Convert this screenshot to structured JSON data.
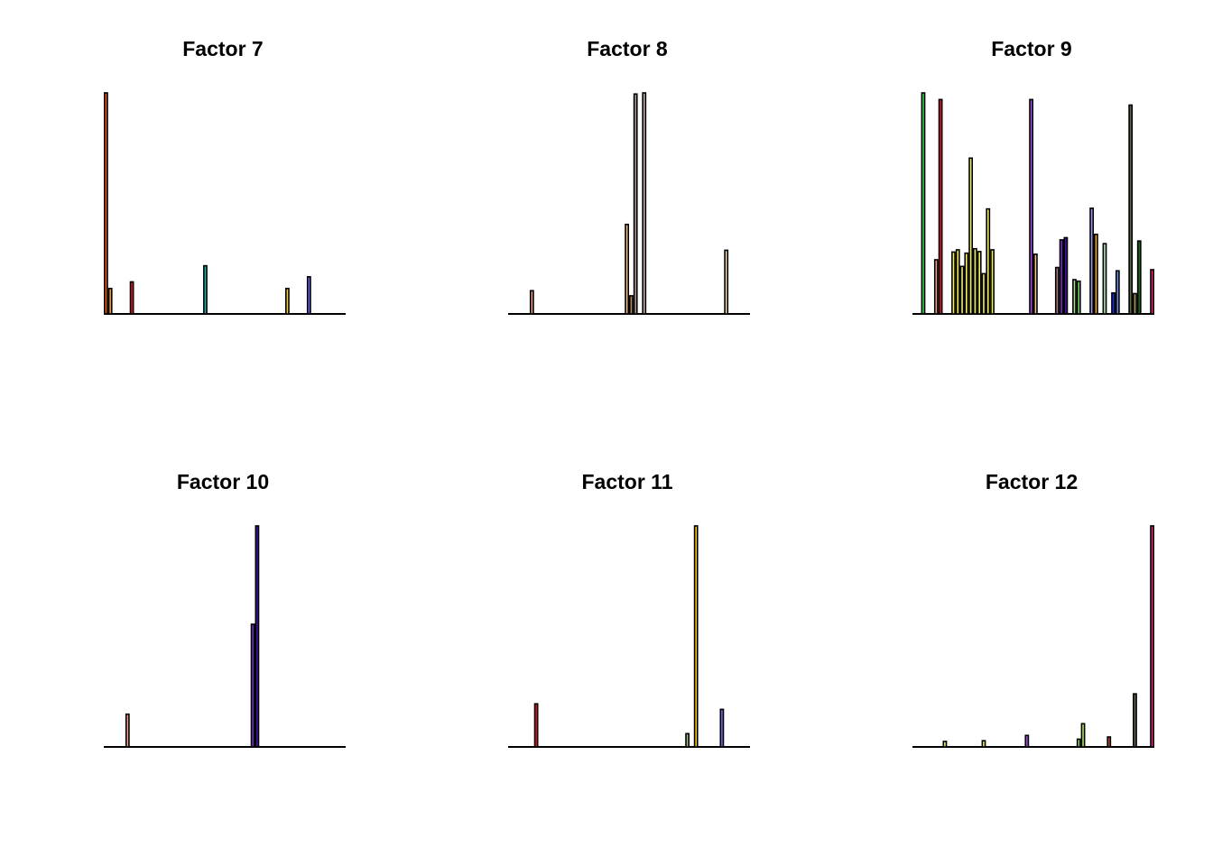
{
  "chart_data": [
    {
      "type": "bar",
      "title": "Factor 7",
      "xlabel": "",
      "ylabel": "",
      "ylim": [
        0,
        1
      ],
      "axes_shown": false,
      "grid": false,
      "bars": [
        {
          "value": 1.0,
          "color": "#f25c1b"
        },
        {
          "value": 0.115,
          "color": "#f7a21c"
        },
        {
          "value": 0.145,
          "color": "#e8101f"
        },
        {
          "value": 0.218,
          "color": "#18b5b5"
        },
        {
          "value": 0.115,
          "color": "#f2d21a"
        },
        {
          "value": 0.168,
          "color": "#6a6aef"
        }
      ]
    },
    {
      "type": "bar",
      "title": "Factor 8",
      "xlabel": "",
      "ylabel": "",
      "ylim": [
        0,
        1
      ],
      "axes_shown": false,
      "grid": false,
      "bars": [
        {
          "value": 0.105,
          "color": "#f29a8e"
        },
        {
          "value": 0.405,
          "color": "#f5bf86"
        },
        {
          "value": 0.082,
          "color": "#b68a56"
        },
        {
          "value": 0.995,
          "color": "#a8968a"
        },
        {
          "value": 1.0,
          "color": "#c7b2a6"
        },
        {
          "value": 0.288,
          "color": "#f7dca8"
        }
      ]
    },
    {
      "type": "bar",
      "title": "Factor 9",
      "xlabel": "",
      "ylabel": "",
      "ylim": [
        0,
        1
      ],
      "axes_shown": false,
      "grid": false,
      "bars": [
        {
          "value": 1.0,
          "color": "#33d94a"
        },
        {
          "value": 0.245,
          "color": "#f0a088"
        },
        {
          "value": 0.97,
          "color": "#e8101f"
        },
        {
          "value": 0.28,
          "color": "#f7f25a"
        },
        {
          "value": 0.29,
          "color": "#f7f25a"
        },
        {
          "value": 0.215,
          "color": "#f7f25a"
        },
        {
          "value": 0.275,
          "color": "#f7f25a"
        },
        {
          "value": 0.705,
          "color": "#f7f25a"
        },
        {
          "value": 0.295,
          "color": "#f7f25a"
        },
        {
          "value": 0.282,
          "color": "#f7f25a"
        },
        {
          "value": 0.182,
          "color": "#f7f25a"
        },
        {
          "value": 0.475,
          "color": "#f7f25a"
        },
        {
          "value": 0.29,
          "color": "#f7f25a"
        },
        {
          "value": 0.97,
          "color": "#a84be8"
        },
        {
          "value": 0.27,
          "color": "#f5c08a"
        },
        {
          "value": 0.21,
          "color": "#a8807a"
        },
        {
          "value": 0.335,
          "color": "#7a28d8"
        },
        {
          "value": 0.345,
          "color": "#4a0fa8"
        },
        {
          "value": 0.155,
          "color": "#a8d88a"
        },
        {
          "value": 0.148,
          "color": "#7adb6a"
        },
        {
          "value": 0.478,
          "color": "#9a9af2"
        },
        {
          "value": 0.36,
          "color": "#f7a821"
        },
        {
          "value": 0.318,
          "color": "#a8f2b0"
        },
        {
          "value": 0.095,
          "color": "#1a2ee8"
        },
        {
          "value": 0.195,
          "color": "#6a8ae8"
        },
        {
          "value": 0.945,
          "color": "#5a6a4a"
        },
        {
          "value": 0.092,
          "color": "#b09a6a"
        },
        {
          "value": 0.33,
          "color": "#1a6a1a"
        },
        {
          "value": 0.2,
          "color": "#e8207a"
        }
      ]
    },
    {
      "type": "bar",
      "title": "Factor 10",
      "xlabel": "",
      "ylabel": "",
      "ylim": [
        0,
        1
      ],
      "axes_shown": false,
      "grid": false,
      "bars": [
        {
          "value": 0.148,
          "color": "#f29a8e"
        },
        {
          "value": 0.555,
          "color": "#7a28d8"
        },
        {
          "value": 1.0,
          "color": "#4a0fa8"
        }
      ]
    },
    {
      "type": "bar",
      "title": "Factor 11",
      "xlabel": "",
      "ylabel": "",
      "ylim": [
        0,
        1
      ],
      "axes_shown": false,
      "grid": false,
      "bars": [
        {
          "value": 0.195,
          "color": "#e8101f"
        },
        {
          "value": 0.06,
          "color": "#9ac08a"
        },
        {
          "value": 1.0,
          "color": "#f7c81a"
        },
        {
          "value": 0.17,
          "color": "#6a6aef"
        }
      ]
    },
    {
      "type": "bar",
      "title": "Factor 12",
      "xlabel": "",
      "ylabel": "",
      "ylim": [
        0,
        1
      ],
      "axes_shown": false,
      "grid": false,
      "bars": [
        {
          "value": 0.025,
          "color": "#f7f25a"
        },
        {
          "value": 0.028,
          "color": "#f7f25a"
        },
        {
          "value": 0.052,
          "color": "#a84be8"
        },
        {
          "value": 0.035,
          "color": "#7adb6a"
        },
        {
          "value": 0.105,
          "color": "#a8f23a"
        },
        {
          "value": 0.045,
          "color": "#b0482a"
        },
        {
          "value": 0.24,
          "color": "#5a6a4a"
        },
        {
          "value": 1.0,
          "color": "#e8208a"
        }
      ]
    }
  ]
}
